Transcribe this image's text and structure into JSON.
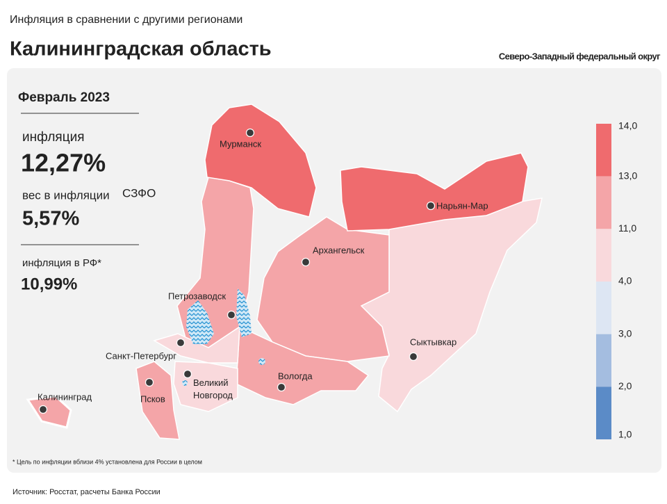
{
  "header": {
    "subtitle": "Инфляция в сравнении с другими регионами",
    "title": "Калининградская область",
    "district": "Северо-Западный федеральный округ"
  },
  "panel": {
    "period": "Февраль 2023",
    "inflation_label": "инфляция",
    "inflation_value": "12,27%",
    "weight_label": "вес в инфляции",
    "weight_region": "СЗФО",
    "weight_value": "5,57%",
    "rf_label": "инфляция  в РФ*",
    "rf_value": "10,99%"
  },
  "legend": {
    "labels": [
      "14,0",
      "13,0",
      "11,0",
      "4,0",
      "3,0",
      "2,0",
      "1,0"
    ],
    "colors": [
      "#ef6b6e",
      "#f4a5a8",
      "#f9d9dc",
      "#dde6f3",
      "#a4bde0",
      "#5b8bc7"
    ]
  },
  "cities": [
    "Мурманск",
    "Нарьян-Мар",
    "Архангельск",
    "Петрозаводск",
    "Сыктывкар",
    "Санкт-Петербург",
    "Вологда",
    "Великий\nНовгород",
    "Псков",
    "Калининград"
  ],
  "footnote": "* Цель по инфляции вблизи 4% установлена для России в целом",
  "source": "Источник: Росстат, расчеты Банка России"
}
